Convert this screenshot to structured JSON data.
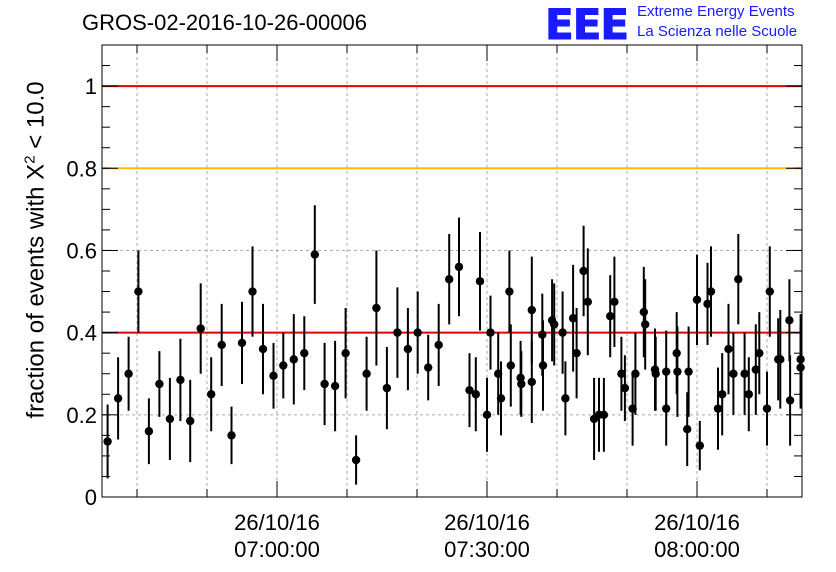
{
  "header": {
    "title": "GROS-02-2016-10-26-00006",
    "logo_text": "EEE",
    "org_line1": "Extreme Energy Events",
    "org_line2": "La Scienza nelle Scuole"
  },
  "colors": {
    "accent": "#1a1aff",
    "ref_line_red": "#e00000",
    "ref_line_orange": "#ffbf00",
    "points": "#000000"
  },
  "chart_data": {
    "type": "scatter",
    "title": "GROS-02-2016-10-26-00006",
    "ylabel_prefix": "fraction of events with X",
    "ylabel_sup": "2",
    "ylabel_suffix": " < 10.0",
    "xlabel": "",
    "ylim": [
      0,
      1.1
    ],
    "xlim": [
      "06:35:00",
      "08:15:00"
    ],
    "grid": true,
    "yticks": [
      "0",
      "0.2",
      "0.4",
      "0.6",
      "0.8",
      "1"
    ],
    "xticks": [
      {
        "date": "26/10/16",
        "time": "07:00:00"
      },
      {
        "date": "26/10/16",
        "time": "07:30:00"
      },
      {
        "date": "26/10/16",
        "time": "08:00:00"
      }
    ],
    "reference_lines": [
      {
        "y": 1.0,
        "color": "#e00000"
      },
      {
        "y": 0.8,
        "color": "#ffbf00"
      },
      {
        "y": 0.4,
        "color": "#e00000"
      }
    ],
    "series": [
      {
        "x_minutes_from_start": [
          0.8,
          2.3,
          3.8,
          5.2,
          6.7,
          8.2,
          9.7,
          11.2,
          12.6,
          14.1,
          15.6,
          17.1,
          18.5,
          20.0,
          21.5,
          23.0,
          24.5,
          25.9,
          27.4,
          28.9,
          30.4,
          31.8,
          33.3,
          34.8,
          36.3,
          37.8,
          39.2,
          40.7,
          42.2,
          43.7,
          45.1,
          46.6,
          48.1,
          49.6,
          51.0,
          52.5,
          54.0,
          55.5,
          57.0,
          58.4,
          59.9,
          61.4,
          62.9,
          64.3,
          65.8,
          67.3,
          68.8,
          70.3,
          71.7,
          73.2,
          74.7,
          76.2,
          77.6,
          79.1,
          80.6,
          82.1,
          83.6,
          85.0,
          86.5,
          88.0,
          89.5,
          90.9,
          92.4,
          93.9,
          95.4,
          96.9,
          98.3,
          99.8
        ],
        "y": [
          0.135,
          0.24,
          0.3,
          0.5,
          0.16,
          0.275,
          0.19,
          0.285,
          0.185,
          0.41,
          0.25,
          0.37,
          0.15,
          0.375,
          0.5,
          0.36,
          0.295,
          0.32,
          0.335,
          0.35,
          0.59,
          0.275,
          0.27,
          0.35,
          0.09,
          0.3,
          0.46,
          0.265,
          0.4,
          0.36,
          0.4,
          0.315,
          0.37,
          0.53,
          0.56,
          0.26,
          0.525,
          0.4,
          0.24,
          0.32,
          0.275,
          0.455,
          0.395,
          0.43,
          0.4,
          0.435,
          0.55,
          0.19,
          0.2,
          0.475,
          0.265,
          0.3,
          0.42,
          0.3,
          0.305,
          0.35,
          0.165,
          0.48,
          0.47,
          0.215,
          0.36,
          0.53,
          0.25,
          0.35,
          0.5,
          0.335,
          0.235,
          0.335
        ],
        "y_err": [
          0.09,
          0.1,
          0.09,
          0.1,
          0.08,
          0.08,
          0.1,
          0.1,
          0.1,
          0.11,
          0.09,
          0.1,
          0.07,
          0.1,
          0.11,
          0.11,
          0.08,
          0.08,
          0.11,
          0.09,
          0.12,
          0.1,
          0.11,
          0.11,
          0.06,
          0.09,
          0.14,
          0.1,
          0.11,
          0.1,
          0.1,
          0.08,
          0.1,
          0.11,
          0.12,
          0.09,
          0.12,
          0.09,
          0.09,
          0.1,
          0.08,
          0.13,
          0.1,
          0.1,
          0.1,
          0.13,
          0.11,
          0.1,
          0.09,
          0.11,
          0.08,
          0.1,
          0.11,
          0.09,
          0.1,
          0.1,
          0.09,
          0.11,
          0.1,
          0.1,
          0.11,
          0.11,
          0.09,
          0.1,
          0.11,
          0.12,
          0.11,
          0.11
        ]
      },
      {
        "x_minutes_from_start": [
          53.4,
          55.0,
          56.6,
          58.2,
          59.8,
          61.4,
          63.0,
          64.6,
          66.2,
          67.8,
          69.4,
          71.0,
          72.6,
          74.2,
          75.8,
          77.4,
          79.0,
          80.6,
          82.2,
          83.8,
          85.4,
          87.0,
          88.6,
          90.2,
          91.8,
          93.4,
          95.0,
          96.6,
          98.2,
          99.8
        ],
        "y": [
          0.25,
          0.2,
          0.3,
          0.5,
          0.29,
          0.28,
          0.32,
          0.42,
          0.24,
          0.35,
          0.475,
          0.2,
          0.44,
          0.3,
          0.215,
          0.45,
          0.31,
          0.215,
          0.305,
          0.305,
          0.125,
          0.5,
          0.25,
          0.3,
          0.3,
          0.31,
          0.215,
          0.335,
          0.43,
          0.315
        ],
        "y_err": [
          0.09,
          0.09,
          0.1,
          0.1,
          0.09,
          0.1,
          0.11,
          0.1,
          0.09,
          0.11,
          0.13,
          0.09,
          0.1,
          0.09,
          0.09,
          0.11,
          0.1,
          0.09,
          0.11,
          0.11,
          0.06,
          0.11,
          0.1,
          0.1,
          0.1,
          0.11,
          0.09,
          0.1,
          0.1,
          0.1
        ]
      }
    ]
  }
}
